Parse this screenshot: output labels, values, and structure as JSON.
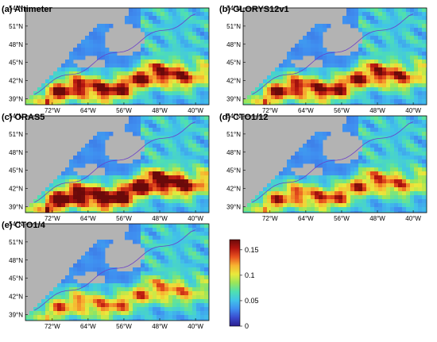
{
  "chart_data": {
    "type": "heatmap",
    "panels": [
      {
        "id": "altimeter",
        "title": "(a) Altimeter",
        "intensity": 1.0
      },
      {
        "id": "glorys",
        "title": "(b) GLORYS12v1",
        "intensity": 0.95
      },
      {
        "id": "oras5",
        "title": "(c) ORAS5",
        "intensity": 1.2
      },
      {
        "id": "cto12",
        "title": "(d) CTO1/12",
        "intensity": 0.8
      },
      {
        "id": "cto4",
        "title": "(e) CTO1/4",
        "intensity": 0.7
      }
    ],
    "lat_ticks": [
      "54°N",
      "51°N",
      "48°N",
      "45°N",
      "42°N",
      "39°N"
    ],
    "lon_ticks": [
      "72°W",
      "64°W",
      "56°W",
      "48°W",
      "40°W"
    ],
    "lat_range": [
      38,
      54
    ],
    "lon_range": [
      -78,
      -37
    ],
    "colorbar": {
      "range": [
        0,
        0.17
      ],
      "ticks": [
        "0.15",
        "0.1",
        "0.05",
        "0"
      ],
      "tick_values": [
        0.15,
        0.1,
        0.05,
        0
      ],
      "colormap": [
        "#2b1f8f",
        "#3a4ccf",
        "#3f8ff0",
        "#41c4e8",
        "#4fe0b0",
        "#9ae65a",
        "#e9e93c",
        "#f7b431",
        "#e8531f",
        "#b3150f",
        "#6b0a0a"
      ]
    },
    "colors": {
      "land": "#b3b3b3",
      "contour": "#6a3fc8"
    }
  }
}
